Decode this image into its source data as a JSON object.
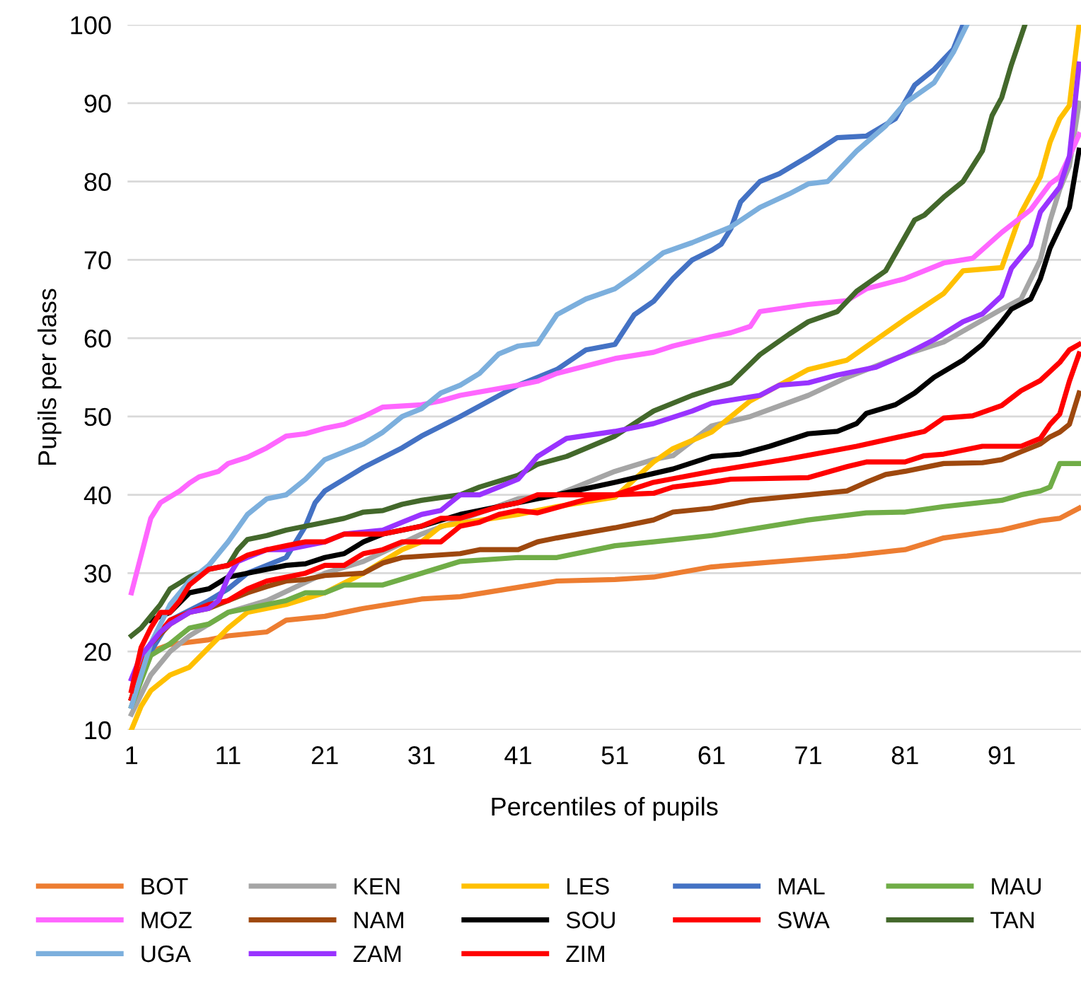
{
  "chart_data": {
    "type": "line",
    "xlabel": "Percentiles of pupils",
    "ylabel": "Pupils per class",
    "xlim": [
      0.6,
      99.2
    ],
    "xticks": [
      1,
      11,
      21,
      31,
      41,
      51,
      61,
      71,
      81,
      91
    ],
    "ylim": [
      10,
      100
    ],
    "yticks": [
      10,
      20,
      30,
      40,
      50,
      60,
      70,
      80,
      90,
      100
    ],
    "grid": "y",
    "legend": "bottom",
    "marker": "none",
    "line_style": "solid",
    "series": [
      {
        "name": "BOT",
        "color": "#ed7d31",
        "x": [
          1,
          2,
          3,
          5,
          9,
          11,
          15,
          17,
          21,
          25,
          31,
          35,
          41,
          45,
          51,
          55,
          61,
          65,
          71,
          75,
          81,
          85,
          91,
          95,
          97,
          99
        ],
        "values": [
          14,
          19,
          20,
          20.9,
          21.5,
          22,
          22.5,
          24,
          24.5,
          25.5,
          26.7,
          27,
          28.2,
          29,
          29.2,
          29.5,
          30.8,
          31.2,
          31.8,
          32.2,
          33,
          34.5,
          35.5,
          36.7,
          37,
          38.3
        ]
      },
      {
        "name": "KEN",
        "color": "#a5a5a5",
        "x": [
          1,
          3,
          5,
          7,
          11,
          15,
          21,
          25,
          31,
          41,
          45,
          51,
          55,
          57,
          61,
          65,
          71,
          75,
          81,
          85,
          91,
          93,
          95,
          96,
          97,
          98,
          99
        ],
        "values": [
          12,
          17,
          20,
          22,
          25,
          26.5,
          30,
          31.5,
          35,
          39.5,
          40,
          43,
          44.5,
          45,
          48.8,
          50,
          52.7,
          55,
          57.9,
          59.5,
          63.7,
          65,
          70,
          75,
          79,
          82,
          90
        ]
      },
      {
        "name": "LES",
        "color": "#ffc000",
        "x": [
          1,
          2,
          3,
          5,
          7,
          9,
          11,
          13,
          17,
          21,
          25,
          29,
          31,
          33,
          41,
          45,
          51,
          55,
          57,
          61,
          65,
          71,
          75,
          78,
          81,
          85,
          87,
          91,
          93,
          95,
          96,
          97,
          98,
          99
        ],
        "values": [
          10,
          13,
          15,
          17,
          18,
          20.5,
          23,
          25,
          26,
          27.5,
          30,
          33,
          34,
          36,
          37.5,
          38.5,
          39.7,
          44.2,
          45.9,
          48,
          52,
          56,
          57.2,
          59.8,
          62.4,
          65.7,
          68.6,
          69,
          76,
          80.6,
          85,
          88,
          89.7,
          100
        ]
      },
      {
        "name": "MAL",
        "color": "#4472c4",
        "x": [
          1,
          3,
          5,
          9,
          11,
          13,
          17,
          19,
          20,
          21,
          23,
          25,
          29,
          31,
          35,
          41,
          45,
          48,
          51,
          53,
          55,
          57,
          59,
          61,
          62,
          63,
          64,
          66,
          68,
          71,
          74,
          77,
          80,
          82,
          84,
          86,
          87
        ],
        "values": [
          14,
          20,
          24,
          26.5,
          28,
          30,
          32,
          36,
          39,
          40.5,
          42,
          43.5,
          46,
          47.5,
          50,
          54,
          56,
          58.5,
          59.2,
          63,
          64.7,
          67.6,
          70,
          71.2,
          72,
          74,
          77.4,
          80,
          81,
          83.2,
          85.6,
          85.8,
          88,
          92.3,
          94.3,
          96.9,
          100
        ]
      },
      {
        "name": "MAU",
        "color": "#70ad47",
        "x": [
          1,
          3,
          5,
          7,
          9,
          11,
          15,
          17,
          19,
          21,
          23,
          27,
          31,
          35,
          41,
          45,
          51,
          55,
          61,
          71,
          77,
          81,
          85,
          91,
          93,
          95,
          96,
          97,
          99
        ],
        "values": [
          13,
          19.5,
          21,
          23,
          23.5,
          25,
          26,
          26.5,
          27.5,
          27.5,
          28.5,
          28.5,
          30,
          31.5,
          32,
          32,
          33.5,
          34,
          34.8,
          36.8,
          37.7,
          37.8,
          38.5,
          39.3,
          40,
          40.5,
          41,
          44,
          44
        ]
      },
      {
        "name": "MOZ",
        "color": "#ff66ff",
        "x": [
          1,
          3,
          4,
          6,
          7,
          8,
          10,
          11,
          13,
          15,
          17,
          19,
          21,
          23,
          25,
          27,
          31,
          33,
          35,
          41,
          43,
          45,
          51,
          55,
          57,
          61,
          63,
          65,
          66,
          71,
          75,
          77,
          81,
          85,
          88,
          91,
          94,
          96,
          97,
          98,
          99
        ],
        "values": [
          27.5,
          37,
          39,
          40.5,
          41.5,
          42.3,
          43,
          44,
          44.8,
          46,
          47.5,
          47.8,
          48.5,
          49,
          50,
          51.2,
          51.5,
          52,
          52.7,
          54,
          54.5,
          55.5,
          57.4,
          58.2,
          59,
          60.2,
          60.7,
          61.5,
          63.4,
          64.3,
          64.8,
          66.3,
          67.6,
          69.6,
          70.2,
          73.5,
          76.4,
          79.7,
          80.6,
          83.2,
          86
        ]
      },
      {
        "name": "NAM",
        "color": "#9e480e",
        "x": [
          1,
          3,
          5,
          7,
          9,
          11,
          13,
          15,
          17,
          19,
          21,
          25,
          27,
          29,
          35,
          37,
          41,
          43,
          45,
          51,
          55,
          57,
          61,
          63,
          65,
          71,
          75,
          77,
          79,
          81,
          83,
          85,
          89,
          91,
          93,
          95,
          96,
          97,
          98,
          99
        ],
        "values": [
          14,
          21,
          23.5,
          25,
          25.5,
          26.5,
          27.5,
          28.3,
          29,
          29.2,
          29.7,
          30,
          31.3,
          32,
          32.5,
          33,
          33,
          34,
          34.5,
          35.8,
          36.8,
          37.8,
          38.3,
          38.8,
          39.3,
          40,
          40.5,
          41.6,
          42.6,
          43,
          43.5,
          44,
          44.1,
          44.5,
          45.5,
          46.5,
          47.4,
          48,
          49,
          53
        ]
      },
      {
        "name": "SOU",
        "color": "#000000",
        "x": [
          3,
          5,
          7,
          9,
          11,
          13,
          17,
          19,
          21,
          23,
          25,
          27,
          31,
          35,
          41,
          45,
          51,
          57,
          61,
          64,
          67,
          71,
          74,
          76,
          77,
          80,
          82,
          84,
          87,
          89,
          91,
          92,
          94,
          95,
          96,
          97,
          98,
          99
        ],
        "values": [
          24,
          25,
          27.5,
          28,
          29.5,
          30,
          31,
          31.2,
          32,
          32.5,
          34,
          35,
          36,
          37.5,
          39,
          40,
          41.6,
          43.3,
          44.9,
          45.2,
          46.2,
          47.8,
          48.1,
          49.1,
          50.4,
          51.5,
          53,
          55,
          57.2,
          59.2,
          62.1,
          63.7,
          65,
          67.6,
          71.5,
          74.1,
          76.7,
          84
        ]
      },
      {
        "name": "SWA",
        "color": "#ff0000",
        "x": [
          1,
          3,
          5,
          7,
          9,
          11,
          13,
          15,
          17,
          19,
          21,
          23,
          25,
          27,
          29,
          31,
          33,
          35,
          37,
          39,
          41,
          43,
          48,
          51,
          55,
          61,
          69,
          76,
          83,
          85,
          88,
          91,
          93,
          95,
          97,
          98,
          99
        ],
        "values": [
          14,
          21,
          24,
          25,
          26,
          26.5,
          28,
          29,
          29.5,
          30,
          31,
          31,
          32.5,
          33,
          34,
          34,
          34,
          36,
          36.5,
          37.5,
          38,
          37.7,
          39.4,
          40,
          41.6,
          43,
          44.6,
          46.2,
          48.1,
          49.8,
          50.1,
          51.4,
          53.3,
          54.6,
          56.9,
          58.5,
          59.2
        ]
      },
      {
        "name": "TAN",
        "color": "#43682b",
        "x": [
          1,
          2,
          3,
          4,
          5,
          7,
          9,
          11,
          12,
          13,
          15,
          17,
          21,
          23,
          25,
          27,
          29,
          31,
          35,
          37,
          41,
          43,
          46,
          51,
          55,
          59,
          63,
          66,
          69,
          71,
          74,
          76,
          79,
          82,
          83,
          85,
          87,
          89,
          90,
          91,
          92,
          93.4
        ],
        "values": [
          22,
          23,
          24.5,
          26,
          28,
          29.5,
          30.5,
          31,
          33,
          34.3,
          34.8,
          35.5,
          36.5,
          37,
          37.8,
          38,
          38.8,
          39.3,
          40,
          41,
          42.5,
          43.9,
          44.9,
          47.5,
          50.7,
          52.7,
          54.3,
          57.9,
          60.5,
          62.1,
          63.4,
          66,
          68.6,
          75.1,
          75.7,
          78,
          80,
          83.9,
          88.4,
          90.7,
          94.9,
          100
        ]
      },
      {
        "name": "UGA",
        "color": "#7cafdd",
        "x": [
          1,
          3,
          5,
          7,
          9,
          11,
          13,
          15,
          17,
          19,
          21,
          23,
          25,
          27,
          29,
          31,
          33,
          35,
          37,
          39,
          41,
          43,
          45,
          48,
          51,
          53,
          56,
          59,
          61,
          63,
          66,
          69,
          71,
          73,
          76,
          79,
          81,
          84,
          86,
          87.4
        ],
        "values": [
          13,
          21,
          26,
          29,
          31,
          34,
          37.5,
          39.5,
          40,
          42,
          44.5,
          45.5,
          46.5,
          48,
          50,
          51,
          53,
          54,
          55.5,
          58,
          59,
          59.3,
          63,
          65,
          66.3,
          68,
          70.9,
          72.2,
          73.2,
          74.2,
          76.7,
          78.4,
          79.7,
          80,
          83.9,
          87.1,
          90,
          92.6,
          96.5,
          100
        ]
      },
      {
        "name": "ZAM",
        "color": "#9933ff",
        "x": [
          1,
          2,
          3,
          4,
          5,
          7,
          9,
          10,
          11,
          12,
          13,
          15,
          17,
          21,
          23,
          27,
          29,
          31,
          33,
          35,
          37,
          39,
          41,
          43,
          46,
          51,
          55,
          59,
          61,
          66,
          68,
          71,
          74,
          78,
          81,
          84,
          87,
          89,
          91,
          92,
          94,
          95,
          97,
          98,
          99
        ],
        "values": [
          16.5,
          19.5,
          21,
          22.5,
          23.5,
          25,
          25.5,
          26.5,
          29.5,
          31.5,
          32,
          33,
          33,
          34,
          35,
          35.5,
          36.5,
          37.5,
          38,
          40,
          40,
          41,
          42,
          44.9,
          47.2,
          48.1,
          49.1,
          50.7,
          51.7,
          52.7,
          54,
          54.3,
          55.3,
          56.3,
          57.9,
          59.8,
          62.1,
          63.1,
          65.4,
          68.9,
          71.9,
          76.1,
          79.3,
          83.2,
          95
        ]
      },
      {
        "name": "ZIM",
        "color": "#ff0000",
        "x": [
          1,
          2,
          3,
          4,
          5,
          6,
          7,
          9,
          11,
          13,
          15,
          17,
          19,
          21,
          23,
          27,
          31,
          33,
          35,
          39,
          41,
          43,
          45,
          51,
          55,
          57,
          61,
          63,
          71,
          75,
          77,
          81,
          83,
          85,
          89,
          91,
          93,
          95,
          96,
          97,
          98,
          99
        ],
        "values": [
          15,
          20.5,
          23,
          25,
          25,
          26.5,
          28.5,
          30.5,
          31,
          32.3,
          33,
          33.5,
          34,
          34,
          35,
          35,
          36,
          37,
          37,
          38.5,
          39,
          40,
          40,
          40,
          40.2,
          41,
          41.6,
          42,
          42.2,
          43.6,
          44.2,
          44.2,
          45,
          45.2,
          46.2,
          46.2,
          46.2,
          47.2,
          49,
          50.3,
          54.5,
          58
        ]
      }
    ]
  }
}
